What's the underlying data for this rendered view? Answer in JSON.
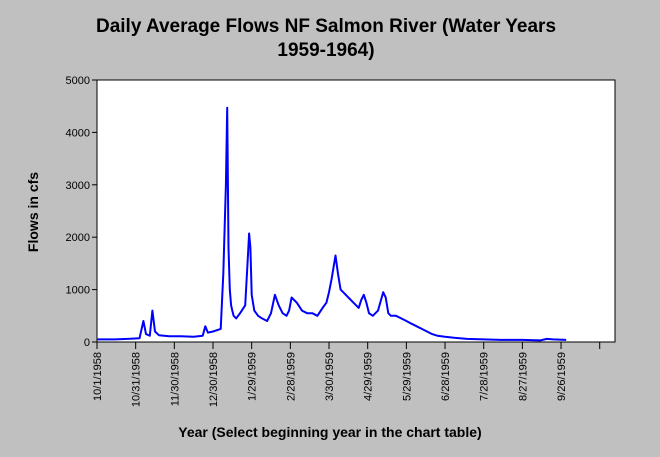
{
  "chart_data": {
    "type": "line",
    "title_line1": "Daily Average Flows NF Salmon River (Water Years",
    "title_line2": "1959-1964)",
    "xlabel": "Year (Select beginning year in the chart table)",
    "ylabel": "Flows in cfs",
    "ylim": [
      0,
      5000
    ],
    "yticks": [
      "0",
      "1000",
      "2000",
      "3000",
      "4000",
      "5000"
    ],
    "xticks": [
      "10/1/1958",
      "10/31/1958",
      "11/30/1958",
      "12/30/1958",
      "1/29/1959",
      "2/28/1959",
      "3/30/1959",
      "4/29/1959",
      "5/29/1959",
      "6/28/1959",
      "7/28/1959",
      "8/27/1959",
      "9/26/1959"
    ],
    "grid": false,
    "line_color": "#0000ff",
    "series": [
      {
        "x": [
          "1958-10-01",
          "1958-10-15",
          "1958-10-25",
          "1958-11-03",
          "1958-11-06",
          "1958-11-08",
          "1958-11-11",
          "1958-11-13",
          "1958-11-15",
          "1958-11-18",
          "1958-11-22",
          "1958-11-26",
          "1958-12-05",
          "1958-12-15",
          "1958-12-22",
          "1958-12-24",
          "1958-12-26",
          "1958-12-30",
          "1959-01-05",
          "1959-01-07",
          "1959-01-09",
          "1959-01-10",
          "1959-01-11",
          "1959-01-12",
          "1959-01-13",
          "1959-01-14",
          "1959-01-15",
          "1959-01-17",
          "1959-01-20",
          "1959-01-24",
          "1959-01-26",
          "1959-01-27",
          "1959-01-28",
          "1959-01-29",
          "1959-01-31",
          "1959-02-03",
          "1959-02-06",
          "1959-02-10",
          "1959-02-13",
          "1959-02-16",
          "1959-02-19",
          "1959-02-22",
          "1959-02-25",
          "1959-02-27",
          "1959-03-01",
          "1959-03-05",
          "1959-03-09",
          "1959-03-13",
          "1959-03-17",
          "1959-03-21",
          "1959-03-25",
          "1959-03-28",
          "1959-03-30",
          "1959-04-01",
          "1959-04-04",
          "1959-04-06",
          "1959-04-08",
          "1959-04-10",
          "1959-04-14",
          "1959-04-18",
          "1959-04-22",
          "1959-04-24",
          "1959-04-26",
          "1959-04-28",
          "1959-04-30",
          "1959-05-03",
          "1959-05-07",
          "1959-05-11",
          "1959-05-13",
          "1959-05-15",
          "1959-05-17",
          "1959-05-21",
          "1959-05-25",
          "1959-05-29",
          "1959-06-02",
          "1959-06-06",
          "1959-06-10",
          "1959-06-14",
          "1959-06-18",
          "1959-06-22",
          "1959-06-28",
          "1959-07-05",
          "1959-07-15",
          "1959-07-28",
          "1959-08-10",
          "1959-08-27",
          "1959-09-10",
          "1959-09-15",
          "1959-09-20",
          "1959-09-30"
        ],
        "y": [
          50,
          50,
          60,
          70,
          400,
          150,
          120,
          600,
          200,
          130,
          120,
          110,
          110,
          100,
          120,
          300,
          180,
          200,
          250,
          1300,
          3000,
          4470,
          1800,
          1000,
          700,
          600,
          500,
          450,
          550,
          700,
          1600,
          2070,
          1800,
          900,
          600,
          500,
          450,
          400,
          550,
          900,
          700,
          550,
          500,
          600,
          850,
          750,
          600,
          550,
          550,
          500,
          650,
          750,
          950,
          1200,
          1650,
          1300,
          1000,
          950,
          850,
          750,
          650,
          800,
          900,
          750,
          550,
          500,
          600,
          950,
          850,
          550,
          500,
          500,
          450,
          400,
          350,
          300,
          250,
          200,
          150,
          120,
          100,
          80,
          60,
          50,
          40,
          40,
          30,
          60,
          50,
          40
        ]
      }
    ]
  }
}
